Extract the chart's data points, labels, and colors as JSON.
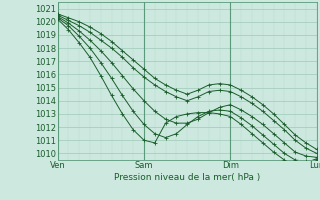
{
  "title": "",
  "xlabel": "Pression niveau de la mer( hPa )",
  "ylabel": "",
  "bg_color": "#cce8df",
  "grid_color_major": "#9ec9b8",
  "grid_color_minor": "#b8ddd0",
  "line_colors": [
    "#1a5c2a",
    "#1a5c2a",
    "#1a5c2a",
    "#1a5c2a",
    "#1a5c2a"
  ],
  "ylim": [
    1009.5,
    1021.5
  ],
  "yticks": [
    1010,
    1011,
    1012,
    1013,
    1014,
    1015,
    1016,
    1017,
    1018,
    1019,
    1020,
    1021
  ],
  "xtick_labels": [
    "Ven",
    "Sam",
    "Dim",
    "Lun"
  ],
  "xtick_positions": [
    0,
    48,
    96,
    144
  ],
  "x_max": 144,
  "lines": [
    {
      "x": [
        0,
        6,
        12,
        18,
        24,
        30,
        36,
        42,
        48,
        54,
        60,
        66,
        72,
        78,
        84,
        90,
        96,
        102,
        108,
        114,
        120,
        126,
        132,
        138,
        144
      ],
      "y": [
        1020.6,
        1020.3,
        1020.0,
        1019.6,
        1019.1,
        1018.5,
        1017.8,
        1017.1,
        1016.4,
        1015.7,
        1015.2,
        1014.8,
        1014.5,
        1014.8,
        1015.2,
        1015.3,
        1015.2,
        1014.8,
        1014.3,
        1013.7,
        1013.0,
        1012.2,
        1011.4,
        1010.8,
        1010.3
      ],
      "marker": "+"
    },
    {
      "x": [
        0,
        6,
        12,
        18,
        24,
        30,
        36,
        42,
        48,
        54,
        60,
        66,
        72,
        78,
        84,
        90,
        96,
        102,
        108,
        114,
        120,
        126,
        132,
        138,
        144
      ],
      "y": [
        1020.5,
        1020.1,
        1019.7,
        1019.2,
        1018.6,
        1018.0,
        1017.3,
        1016.5,
        1015.8,
        1015.2,
        1014.7,
        1014.3,
        1014.0,
        1014.3,
        1014.7,
        1014.8,
        1014.7,
        1014.3,
        1013.8,
        1013.2,
        1012.5,
        1011.8,
        1011.0,
        1010.4,
        1010.0
      ],
      "marker": "+"
    },
    {
      "x": [
        0,
        6,
        12,
        18,
        24,
        30,
        36,
        42,
        48,
        54,
        60,
        66,
        72,
        78,
        84,
        90,
        96,
        102,
        108,
        114,
        120,
        126,
        132,
        138,
        144
      ],
      "y": [
        1020.4,
        1019.9,
        1019.3,
        1018.6,
        1017.8,
        1016.9,
        1015.9,
        1014.9,
        1014.0,
        1013.2,
        1012.6,
        1012.3,
        1012.3,
        1012.6,
        1013.1,
        1013.5,
        1013.7,
        1013.3,
        1012.8,
        1012.2,
        1011.5,
        1010.8,
        1010.1,
        1009.8,
        1009.7
      ],
      "marker": "+"
    },
    {
      "x": [
        0,
        6,
        12,
        18,
        24,
        30,
        36,
        42,
        48,
        54,
        60,
        66,
        72,
        78,
        84,
        90,
        96,
        102,
        108,
        114,
        120,
        126,
        132,
        138,
        144
      ],
      "y": [
        1020.3,
        1019.7,
        1018.9,
        1018.0,
        1016.9,
        1015.7,
        1014.4,
        1013.2,
        1012.2,
        1011.5,
        1011.2,
        1011.5,
        1012.2,
        1012.8,
        1013.2,
        1013.3,
        1013.2,
        1012.7,
        1012.1,
        1011.4,
        1010.7,
        1010.0,
        1009.5,
        1009.4,
        1009.5
      ],
      "marker": "+"
    },
    {
      "x": [
        0,
        6,
        12,
        18,
        24,
        30,
        36,
        42,
        48,
        54,
        60,
        66,
        72,
        78,
        84,
        90,
        96,
        102,
        108,
        114,
        120,
        126,
        132,
        138,
        144
      ],
      "y": [
        1020.2,
        1019.4,
        1018.4,
        1017.3,
        1015.9,
        1014.4,
        1013.0,
        1011.8,
        1011.0,
        1010.8,
        1012.3,
        1012.8,
        1013.0,
        1013.1,
        1013.1,
        1013.0,
        1012.8,
        1012.2,
        1011.5,
        1010.8,
        1010.1,
        1009.5,
        1009.1,
        1009.3,
        1009.6
      ],
      "marker": "+"
    }
  ]
}
